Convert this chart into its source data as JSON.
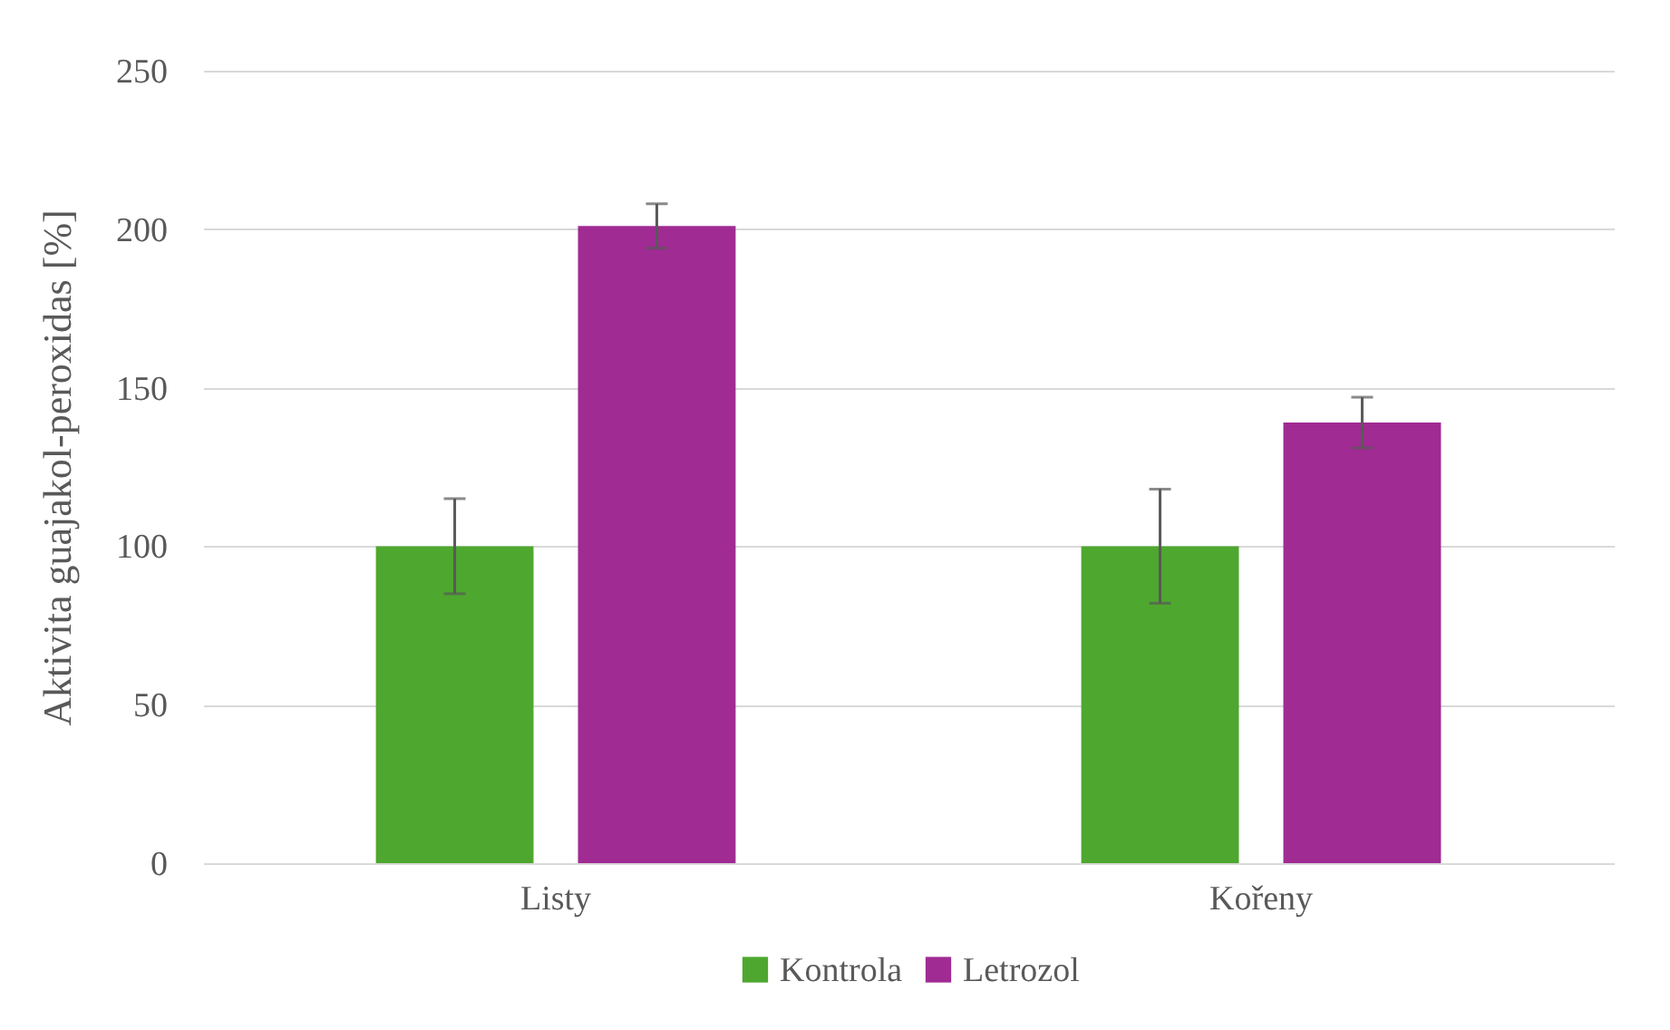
{
  "chart_data": {
    "type": "bar",
    "ylabel": "Aktivita guajakol-peroxidas [%]",
    "categories": [
      "Listy",
      "Kořeny"
    ],
    "series": [
      {
        "name": "Kontrola",
        "color": "#4ea72e",
        "values": [
          100,
          100
        ],
        "errors": [
          15,
          18
        ]
      },
      {
        "name": "Letrozol",
        "color": "#a02b93",
        "values": [
          201,
          139
        ],
        "errors": [
          7,
          8
        ]
      }
    ],
    "ylim": [
      0,
      250
    ],
    "yticks": [
      0,
      50,
      100,
      150,
      200,
      250
    ],
    "grid": "y",
    "legend": "bottom"
  }
}
